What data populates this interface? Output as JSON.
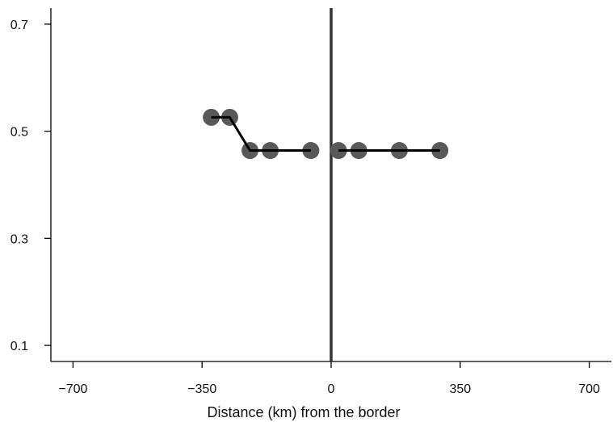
{
  "chart_data": {
    "type": "scatter",
    "title": "",
    "xlabel": "Distance (km) from the border",
    "ylabel": "",
    "xlim": [
      -760,
      760
    ],
    "ylim": [
      0.07,
      0.73
    ],
    "x_ticks": [
      -700,
      -350,
      0,
      350,
      700
    ],
    "x_tick_labels": [
      "−700",
      "−350",
      "0",
      "350",
      "700"
    ],
    "y_ticks": [
      0.1,
      0.3,
      0.5,
      0.7
    ],
    "y_tick_labels": [
      "0.1",
      "0.3",
      "0.5",
      "0.7"
    ],
    "grid": false,
    "border_line_x": 0,
    "colors": {
      "points": "#595959",
      "fit_line": "#000000",
      "border_line": "#333333",
      "axes": "#000000"
    },
    "series": [
      {
        "x": [
          -325,
          -275,
          -220,
          -165,
          -55
        ],
        "y": [
          0.526,
          0.526,
          0.464,
          0.464,
          0.464
        ],
        "fit_x": [
          -325,
          -275,
          -220,
          -165,
          -55
        ],
        "fit_y": [
          0.526,
          0.526,
          0.464,
          0.464,
          0.464
        ]
      },
      {
        "x": [
          20,
          75,
          185,
          295
        ],
        "y": [
          0.464,
          0.464,
          0.464,
          0.464
        ],
        "fit_x": [
          20,
          75,
          185,
          295
        ],
        "fit_y": [
          0.464,
          0.464,
          0.464,
          0.464
        ]
      }
    ]
  }
}
